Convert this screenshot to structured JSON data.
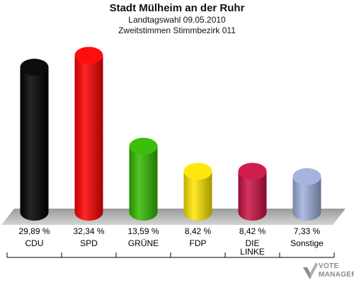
{
  "header": {
    "title": "Stadt Mülheim an der Ruhr",
    "subtitle1": "Landtagswahl 09.05.2010",
    "subtitle2": "Zweitstimmen Stimmbezirk 011"
  },
  "chart_data": {
    "type": "bar",
    "categories": [
      "CDU",
      "SPD",
      "GRÜNE",
      "FDP",
      "DIE LINKE",
      "Sonstige"
    ],
    "values": [
      29.89,
      32.34,
      13.59,
      8.42,
      8.42,
      7.33
    ],
    "value_labels": [
      "29,89 %",
      "32,34 %",
      "13,59 %",
      "8,42 %",
      "8,42 %",
      "7,33 %"
    ],
    "colors": [
      "#000000",
      "#ff0000",
      "#33bb00",
      "#ffe600",
      "#cc1144",
      "#a0b0dd"
    ],
    "ylim": [
      0,
      35
    ],
    "title": "Stadt Mülheim an der Ruhr",
    "xlabel": "",
    "ylabel": ""
  },
  "logo": {
    "line1": "VOTE",
    "line2": "MANAGER",
    "icon": "vote-manager-check-icon"
  }
}
